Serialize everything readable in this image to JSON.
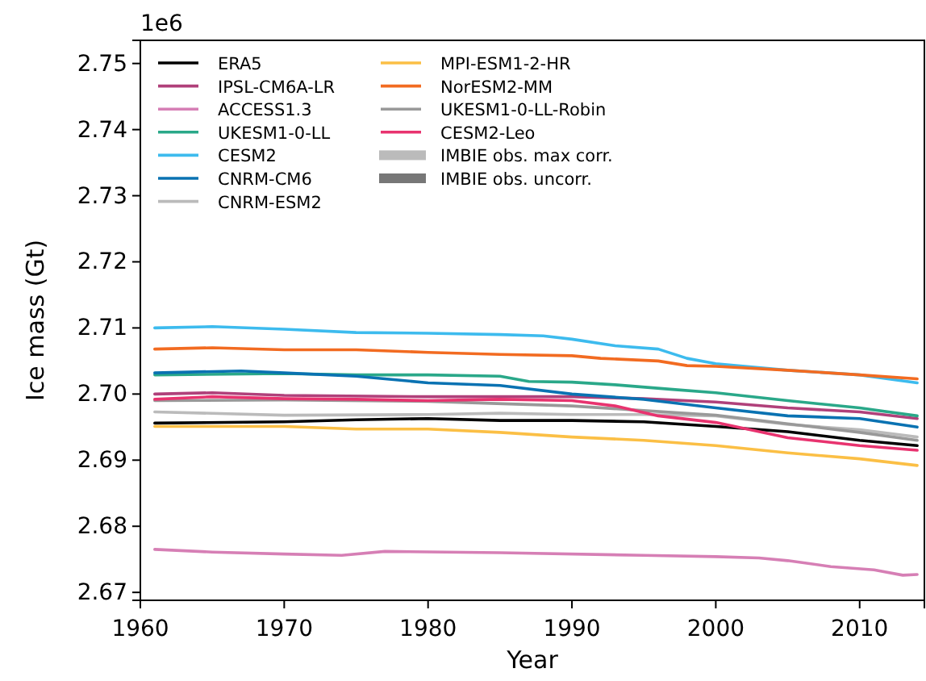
{
  "chart_data": {
    "type": "line",
    "xlabel": "Year",
    "ylabel": "Ice mass (Gt)",
    "annotations": [
      "1e6"
    ],
    "xlim": [
      1960,
      2014.5
    ],
    "xticks": [
      1960,
      1970,
      1980,
      1990,
      2000,
      2010
    ],
    "ylim": [
      2.6688,
      2.7535
    ],
    "yticks": [
      2.67,
      2.68,
      2.69,
      {
        "value": 2.7,
        "label": "2.70"
      },
      2.71,
      2.72,
      2.73,
      2.74,
      2.75
    ],
    "grid": false,
    "legend": "top left",
    "series": [
      {
        "name": "ERA5",
        "color": "#000000",
        "x": [
          1961,
          1970,
          1975,
          1980,
          1985,
          1990,
          1995,
          2000,
          2005,
          2010,
          2014
        ],
        "values": [
          2.6956,
          2.6958,
          2.6961,
          2.6963,
          2.696,
          2.696,
          2.6958,
          2.6951,
          2.6943,
          2.693,
          2.6922
        ]
      },
      {
        "name": "IPSL-CM6A-LR",
        "color": "#b0407a",
        "x": [
          1961,
          1965,
          1970,
          1980,
          1990,
          1995,
          2000,
          2005,
          2010,
          2014
        ],
        "values": [
          2.7,
          2.7002,
          2.6998,
          2.6996,
          2.6996,
          2.6993,
          2.6988,
          2.6979,
          2.6973,
          2.6963
        ]
      },
      {
        "name": "ACCESS1.3",
        "color": "#d67fb5",
        "x": [
          1961,
          1965,
          1970,
          1974,
          1977,
          1985,
          1995,
          2000,
          2003,
          2005,
          2008,
          2011,
          2013,
          2014
        ],
        "values": [
          2.6765,
          2.6761,
          2.6758,
          2.6756,
          2.6762,
          2.676,
          2.6756,
          2.6754,
          2.6752,
          2.6748,
          2.6739,
          2.6734,
          2.6726,
          2.6727
        ]
      },
      {
        "name": "UKESM1-0-LL",
        "color": "#2aa889",
        "x": [
          1961,
          1970,
          1975,
          1980,
          1985,
          1987,
          1990,
          1993,
          1997,
          2000,
          2005,
          2010,
          2014
        ],
        "values": [
          2.7029,
          2.7031,
          2.7029,
          2.7029,
          2.7027,
          2.7019,
          2.7018,
          2.7014,
          2.7007,
          2.7002,
          2.699,
          2.6979,
          2.6967
        ]
      },
      {
        "name": "CESM2",
        "color": "#3dbbee",
        "x": [
          1961,
          1965,
          1970,
          1975,
          1980,
          1985,
          1988,
          1990,
          1993,
          1996,
          1998,
          2000,
          2005,
          2010,
          2014
        ],
        "values": [
          2.71,
          2.7102,
          2.7098,
          2.7093,
          2.7092,
          2.709,
          2.7088,
          2.7083,
          2.7073,
          2.7068,
          2.7054,
          2.7046,
          2.7036,
          2.7029,
          2.7017
        ]
      },
      {
        "name": "CNRM-CM6",
        "color": "#0a72b2",
        "x": [
          1961,
          1967,
          1970,
          1975,
          1980,
          1985,
          1990,
          1995,
          2000,
          2005,
          2010,
          2014
        ],
        "values": [
          2.7032,
          2.7035,
          2.7032,
          2.7027,
          2.7017,
          2.7013,
          2.7,
          2.6992,
          2.6979,
          2.6967,
          2.6963,
          2.695
        ]
      },
      {
        "name": "CNRM-ESM2",
        "color": "#bbbbbb",
        "x": [
          1961,
          1970,
          1980,
          1985,
          1990,
          1995,
          2000,
          2005,
          2010,
          2014
        ],
        "values": [
          2.6973,
          2.6968,
          2.6969,
          2.6971,
          2.6969,
          2.6969,
          2.6967,
          2.6954,
          2.6946,
          2.6935
        ]
      },
      {
        "name": "MPI-ESM1-2-HR",
        "color": "#fbbf45",
        "x": [
          1961,
          1970,
          1975,
          1980,
          1985,
          1990,
          1995,
          2000,
          2005,
          2010,
          2014
        ],
        "values": [
          2.6951,
          2.6951,
          2.6947,
          2.6947,
          2.6942,
          2.6935,
          2.693,
          2.6922,
          2.6911,
          2.6902,
          2.6892
        ]
      },
      {
        "name": "NorESM2-MM",
        "color": "#f26b21",
        "x": [
          1961,
          1965,
          1970,
          1975,
          1980,
          1985,
          1990,
          1992,
          1996,
          1998,
          2000,
          2005,
          2010,
          2014
        ],
        "values": [
          2.7068,
          2.707,
          2.7067,
          2.7067,
          2.7063,
          2.706,
          2.7058,
          2.7054,
          2.705,
          2.7043,
          2.7042,
          2.7036,
          2.7029,
          2.7023
        ]
      },
      {
        "name": "UKESM1-0-LL-Robin",
        "color": "#999999",
        "x": [
          1961,
          1970,
          1980,
          1990,
          1995,
          2000,
          2005,
          2010,
          2014
        ],
        "values": [
          2.699,
          2.6991,
          2.6989,
          2.6982,
          2.6975,
          2.6968,
          2.6955,
          2.6942,
          2.693
        ]
      },
      {
        "name": "CESM2-Leo",
        "color": "#e8336f",
        "x": [
          1961,
          1965,
          1970,
          1975,
          1980,
          1985,
          1990,
          1993,
          1996,
          2000,
          2005,
          2010,
          2014
        ],
        "values": [
          2.6992,
          2.6996,
          2.6993,
          2.6992,
          2.699,
          2.6992,
          2.699,
          2.6982,
          2.6967,
          2.6957,
          2.6934,
          2.6922,
          2.6915
        ]
      },
      {
        "name": "IMBIE obs. max corr.",
        "type": "area",
        "color": "#bbbbbb"
      },
      {
        "name": "IMBIE obs. uncorr.",
        "type": "area",
        "color": "#777777"
      }
    ]
  }
}
